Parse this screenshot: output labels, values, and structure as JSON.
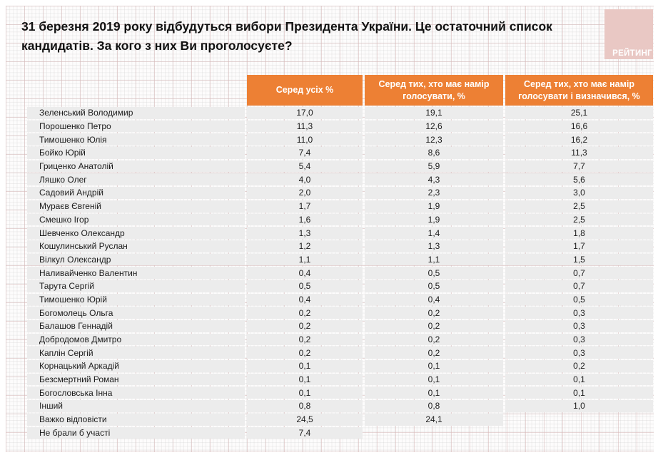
{
  "header": {
    "title": "31 березня 2019 року відбудуться вибори Президента України. Це остаточний список кандидатів. За кого з них Ви проголосуєте?",
    "logo_text": "РЕЙТИНГ"
  },
  "colors": {
    "header_orange": "#ED8034",
    "row_gray": "#ECECEC",
    "logo_pink": "#E9C8C4",
    "title_text": "#111111"
  },
  "chart_data": {
    "type": "table",
    "title": "31 березня 2019 року відбудуться вибори Президента України. Це остаточний список кандидатів. За кого з них Ви проголосуєте?",
    "columns": [
      "Серед усіх %",
      "Серед тих, хто має намір голосувати, %",
      "Серед тих, хто має намір голосувати і визначився, %"
    ],
    "rows": [
      {
        "name": "Зеленський Володимир",
        "all": "17,0",
        "intend": "19,1",
        "decided": "25,1"
      },
      {
        "name": "Порошенко Петро",
        "all": "11,3",
        "intend": "12,6",
        "decided": "16,6"
      },
      {
        "name": "Тимошенко Юлія",
        "all": "11,0",
        "intend": "12,3",
        "decided": "16,2"
      },
      {
        "name": "Бойко Юрій",
        "all": "7,4",
        "intend": "8,6",
        "decided": "11,3"
      },
      {
        "name": "Гриценко Анатолій",
        "all": "5,4",
        "intend": "5,9",
        "decided": "7,7"
      },
      {
        "name": "Ляшко Олег",
        "all": "4,0",
        "intend": "4,3",
        "decided": "5,6"
      },
      {
        "name": "Садовий Андрій",
        "all": "2,0",
        "intend": "2,3",
        "decided": "3,0"
      },
      {
        "name": "Мураєв Євгеній",
        "all": "1,7",
        "intend": "1,9",
        "decided": "2,5"
      },
      {
        "name": "Смешко Ігор",
        "all": "1,6",
        "intend": "1,9",
        "decided": "2,5"
      },
      {
        "name": "Шевченко Олександр",
        "all": "1,3",
        "intend": "1,4",
        "decided": "1,8"
      },
      {
        "name": "Кошулинський Руслан",
        "all": "1,2",
        "intend": "1,3",
        "decided": "1,7"
      },
      {
        "name": "Вілкул Олександр",
        "all": "1,1",
        "intend": "1,1",
        "decided": "1,5"
      },
      {
        "name": "Наливайченко Валентин",
        "all": "0,4",
        "intend": "0,5",
        "decided": "0,7"
      },
      {
        "name": "Тарута Сергій",
        "all": "0,5",
        "intend": "0,5",
        "decided": "0,7"
      },
      {
        "name": "Тимошенко Юрій",
        "all": "0,4",
        "intend": "0,4",
        "decided": "0,5"
      },
      {
        "name": "Богомолець Ольга",
        "all": "0,2",
        "intend": "0,2",
        "decided": "0,3"
      },
      {
        "name": "Балашов Геннадій",
        "all": "0,2",
        "intend": "0,2",
        "decided": "0,3"
      },
      {
        "name": "Добродомов Дмитро",
        "all": "0,2",
        "intend": "0,2",
        "decided": "0,3"
      },
      {
        "name": "Каплін Сергій",
        "all": "0,2",
        "intend": "0,2",
        "decided": "0,3"
      },
      {
        "name": "Корнацький Аркадій",
        "all": "0,1",
        "intend": "0,1",
        "decided": "0,2"
      },
      {
        "name": "Безсмертний Роман",
        "all": "0,1",
        "intend": "0,1",
        "decided": "0,1"
      },
      {
        "name": "Богословська Інна",
        "all": "0,1",
        "intend": "0,1",
        "decided": "0,1"
      },
      {
        "name": "Інший",
        "all": "0,8",
        "intend": "0,8",
        "decided": "1,0"
      },
      {
        "name": "Важко відповісти",
        "all": "24,5",
        "intend": "24,1",
        "decided": null
      },
      {
        "name": "Не брали б участі",
        "all": "7,4",
        "intend": null,
        "decided": null
      }
    ]
  }
}
